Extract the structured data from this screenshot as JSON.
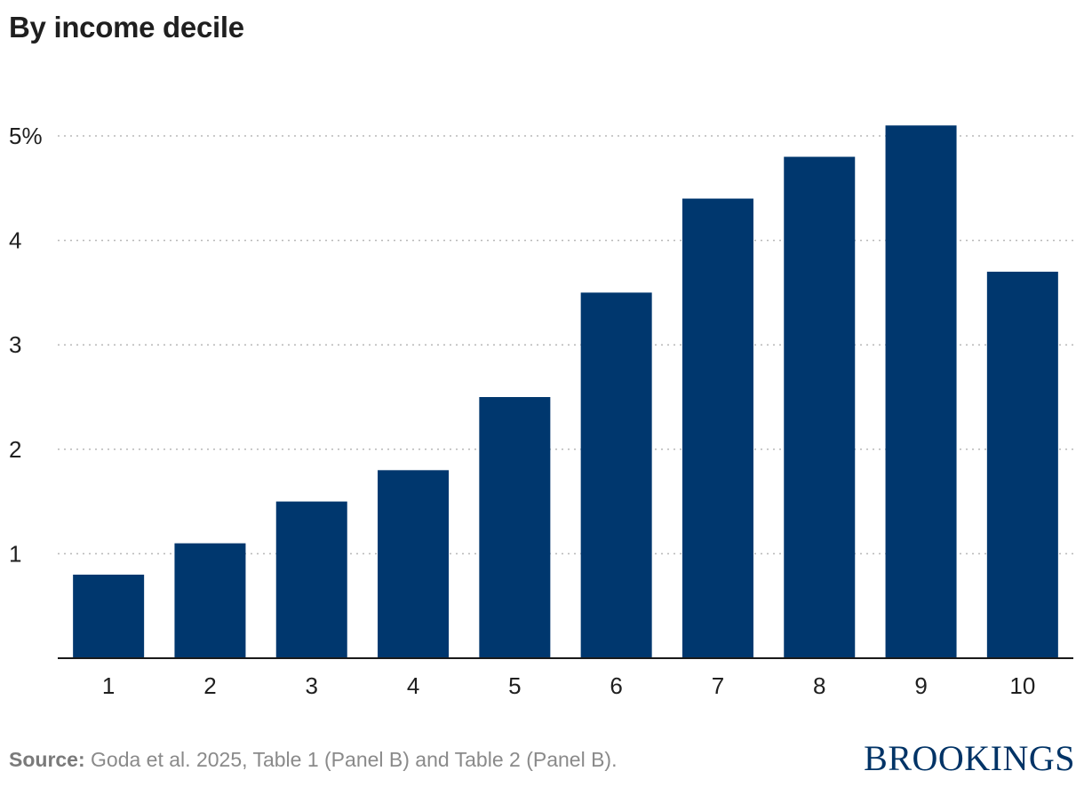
{
  "header": {
    "title": "By income decile"
  },
  "chart_data": {
    "type": "bar",
    "title": "By income decile",
    "xlabel": "",
    "ylabel": "",
    "categories": [
      "1",
      "2",
      "3",
      "4",
      "5",
      "6",
      "7",
      "8",
      "9",
      "10"
    ],
    "values": [
      0.8,
      1.1,
      1.5,
      1.8,
      2.5,
      3.5,
      4.4,
      4.8,
      5.1,
      3.7
    ],
    "ylim": [
      0,
      5.2
    ],
    "yticks": [
      1,
      2,
      3,
      4,
      5
    ],
    "ytick_labels": [
      "1",
      "2",
      "3",
      "4",
      "5%"
    ],
    "grid": "horizontal dotted",
    "bar_color": "#00376e"
  },
  "footer": {
    "source_label": "Source:",
    "source_text": " Goda et al. 2025, Table 1 (Panel B) and Table 2 (Panel B)."
  },
  "brand": {
    "logo_text": "BROOKINGS",
    "logo_color": "#003366"
  }
}
